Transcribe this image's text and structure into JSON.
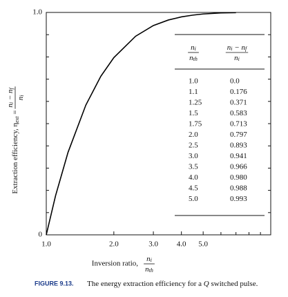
{
  "chart_data": {
    "type": "line",
    "x": [
      1.0,
      1.1,
      1.25,
      1.5,
      1.75,
      2.0,
      2.5,
      3.0,
      3.5,
      4.0,
      4.5,
      5.0,
      6.0,
      7.0
    ],
    "values": [
      0.0,
      0.176,
      0.371,
      0.583,
      0.713,
      0.797,
      0.893,
      0.941,
      0.966,
      0.98,
      0.988,
      0.993,
      0.998,
      0.999
    ],
    "color": "#000000",
    "xscale": "log",
    "xlim": [
      1,
      10
    ],
    "xticks": [
      {
        "value": 1,
        "label": "1.0"
      },
      {
        "value": 2,
        "label": "2.0"
      },
      {
        "value": 3,
        "label": "3.0"
      },
      {
        "value": 4,
        "label": "4.0"
      },
      {
        "value": 5,
        "label": "5.0"
      }
    ],
    "xminor_ticks": [
      6,
      7,
      8,
      9
    ],
    "ylim": [
      0,
      1
    ],
    "yticks": [
      0,
      {
        "value": 1,
        "label": "1.0"
      }
    ],
    "yminor_ticks": [
      0.1,
      0.2,
      0.3,
      0.4,
      0.5,
      0.6,
      0.7,
      0.8,
      0.9
    ],
    "xlabel": "Inversion ratio,",
    "xlabel_fraction": {
      "num": [
        [
          "n",
          "i"
        ]
      ],
      "den": [
        [
          "n",
          "th"
        ]
      ]
    },
    "ylabel": "Extraction efficiency, η",
    "ylabel_sub": "ext",
    "ylabel_eq": " = ",
    "ylabel_fraction": {
      "num": [
        [
          "n",
          "i"
        ],
        [
          " − n",
          "f"
        ]
      ],
      "den": [
        [
          "n",
          "i"
        ]
      ]
    },
    "table": {
      "headers": [
        {
          "num": [
            [
              "n",
              "i"
            ]
          ],
          "den": [
            [
              "n",
              "th"
            ]
          ]
        },
        {
          "num": [
            [
              "n",
              "i"
            ],
            [
              " − n",
              "f"
            ]
          ],
          "den": [
            [
              "n",
              "i"
            ]
          ]
        }
      ],
      "rows": [
        [
          "1.0",
          "0.0"
        ],
        [
          "1.1",
          "0.176"
        ],
        [
          "1.25",
          "0.371"
        ],
        [
          "1.5",
          "0.583"
        ],
        [
          "1.75",
          "0.713"
        ],
        [
          "2.0",
          "0.797"
        ],
        [
          "2.5",
          "0.893"
        ],
        [
          "3.0",
          "0.941"
        ],
        [
          "3.5",
          "0.966"
        ],
        [
          "4.0",
          "0.980"
        ],
        [
          "4.5",
          "0.988"
        ],
        [
          "5.0",
          "0.993"
        ]
      ]
    },
    "caption_label": "FIGURE 9.13.",
    "caption_text": "The energy extraction efficiency for a ",
    "caption_italic": "Q",
    "caption_end": " switched pulse."
  }
}
